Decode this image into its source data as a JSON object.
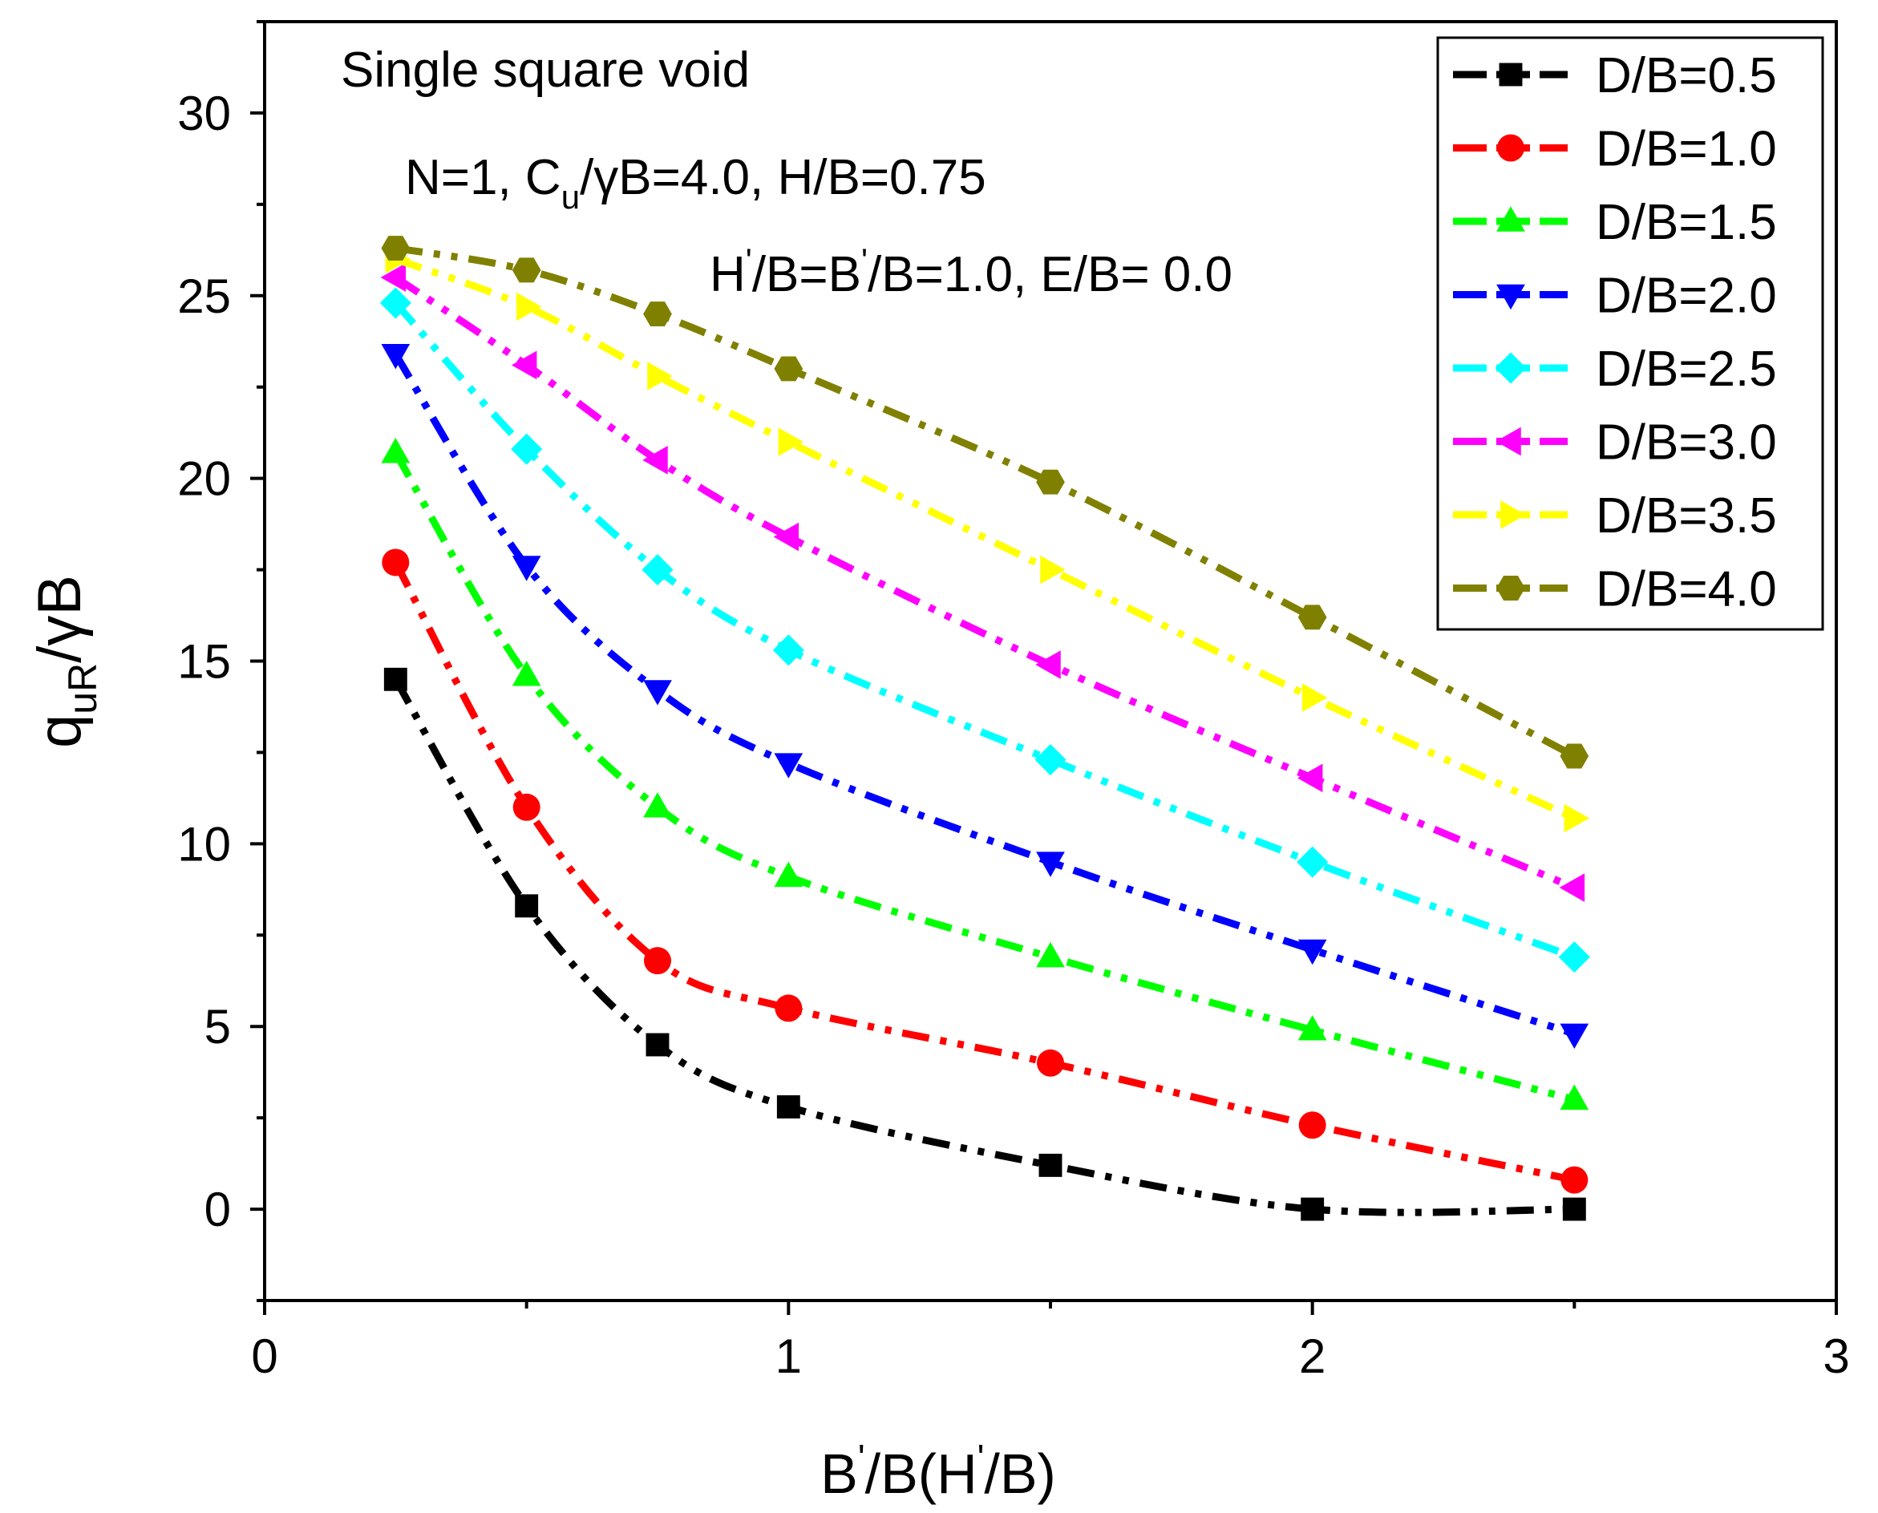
{
  "chart_data": {
    "type": "line",
    "title": "",
    "xlabel": {
      "main": "B",
      "sup1": "'",
      "mid": "/B(H",
      "sup2": "'",
      "tail": "/B)"
    },
    "ylabel": {
      "main": "q",
      "sub": "uR",
      "tail": "/γB"
    },
    "xlim": [
      0,
      3
    ],
    "ylim": [
      -2.5,
      32.5
    ],
    "xticks": [
      0,
      1,
      2,
      3
    ],
    "yticks": [
      0,
      5,
      10,
      15,
      20,
      25,
      30
    ],
    "x": [
      0.25,
      0.5,
      0.75,
      1.0,
      1.5,
      2.0,
      2.5
    ],
    "grid": false,
    "legend": "top-right",
    "annotations": [
      "Single square void",
      {
        "a": "N=1, C",
        "sub": "u",
        "b": "/γB=4.0, H/B=0.75"
      },
      {
        "a": "H",
        "sup1": "'",
        "b": "/B=B",
        "sup2": "'",
        "c": "/B=1.0, E/B= 0.0"
      }
    ],
    "series": [
      {
        "name": "D/B=0.5",
        "color": "#000000",
        "marker": "square",
        "values": [
          14.5,
          8.3,
          4.5,
          2.8,
          1.2,
          0.0,
          0.0
        ]
      },
      {
        "name": "D/B=1.0",
        "color": "#ff0000",
        "marker": "circle",
        "values": [
          17.7,
          11.0,
          6.8,
          5.5,
          4.0,
          2.3,
          0.8
        ]
      },
      {
        "name": "D/B=1.5",
        "color": "#00ff00",
        "marker": "triangle-up",
        "values": [
          20.7,
          14.6,
          11.0,
          9.1,
          6.9,
          4.9,
          3.0
        ]
      },
      {
        "name": "D/B=2.0",
        "color": "#0000ff",
        "marker": "triangle-down",
        "values": [
          23.4,
          17.6,
          14.2,
          12.2,
          9.5,
          7.1,
          4.8
        ]
      },
      {
        "name": "D/B=2.5",
        "color": "#00ffff",
        "marker": "diamond",
        "values": [
          24.8,
          20.8,
          17.5,
          15.3,
          12.3,
          9.5,
          6.9
        ]
      },
      {
        "name": "D/B=3.0",
        "color": "#ff00ff",
        "marker": "triangle-left",
        "values": [
          25.5,
          23.1,
          20.5,
          18.4,
          14.9,
          11.8,
          8.8
        ]
      },
      {
        "name": "D/B=3.5",
        "color": "#ffff00",
        "marker": "triangle-right",
        "values": [
          26.0,
          24.7,
          22.8,
          21.0,
          17.5,
          14.0,
          10.7
        ]
      },
      {
        "name": "D/B=4.0",
        "color": "#808000",
        "marker": "hexagon",
        "values": [
          26.3,
          25.7,
          24.5,
          23.0,
          19.9,
          16.2,
          12.4
        ]
      }
    ]
  }
}
